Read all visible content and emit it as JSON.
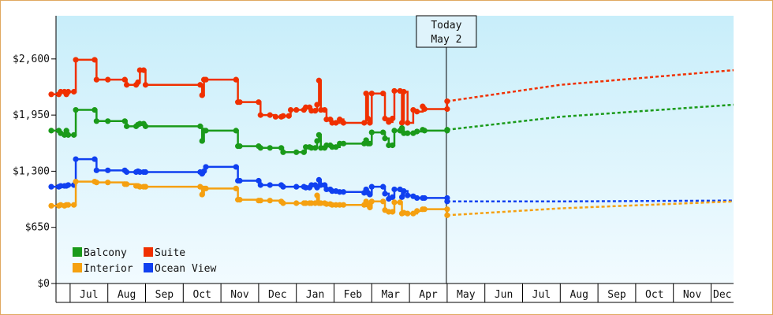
{
  "chart_data": {
    "type": "line",
    "title": "",
    "xlabel": "",
    "ylabel": "",
    "ylim": [
      0,
      3100
    ],
    "y_ticks": [
      "$0",
      "$650",
      "$1,300",
      "$1,950",
      "$2,600"
    ],
    "x_ticks": [
      "Jul",
      "Aug",
      "Sep",
      "Oct",
      "Nov",
      "Dec",
      "Jan",
      "Feb",
      "Mar",
      "Apr",
      "May",
      "Jun",
      "Jul",
      "Aug",
      "Sep",
      "Oct",
      "Nov",
      "Dec"
    ],
    "today": {
      "line1": "Today",
      "line2": "May 2",
      "x": 10.0
    },
    "legend_position": "bottom-left",
    "background": {
      "top": "#c8eefa",
      "bottom": "#f2fbff"
    },
    "series": [
      {
        "name": "Suite",
        "color": "#f03000",
        "points": [
          [
            -0.5,
            2190
          ],
          [
            -0.3,
            2190
          ],
          [
            -0.25,
            2220
          ],
          [
            -0.15,
            2220
          ],
          [
            -0.1,
            2190
          ],
          [
            -0.05,
            2220
          ],
          [
            0.1,
            2220
          ],
          [
            0.15,
            2590
          ],
          [
            0.65,
            2590
          ],
          [
            0.7,
            2360
          ],
          [
            1.0,
            2360
          ],
          [
            1.45,
            2360
          ],
          [
            1.5,
            2300
          ],
          [
            1.75,
            2300
          ],
          [
            1.8,
            2330
          ],
          [
            1.85,
            2470
          ],
          [
            1.95,
            2470
          ],
          [
            2.0,
            2300
          ],
          [
            3.45,
            2300
          ],
          [
            3.5,
            2180
          ],
          [
            3.55,
            2360
          ],
          [
            3.6,
            2360
          ],
          [
            4.4,
            2360
          ],
          [
            4.45,
            2100
          ],
          [
            4.5,
            2100
          ],
          [
            5.0,
            2100
          ],
          [
            5.05,
            1950
          ],
          [
            5.3,
            1950
          ],
          [
            5.45,
            1930
          ],
          [
            5.6,
            1930
          ],
          [
            5.65,
            1940
          ],
          [
            5.8,
            1940
          ],
          [
            5.85,
            2010
          ],
          [
            6.0,
            2010
          ],
          [
            6.2,
            2010
          ],
          [
            6.25,
            2040
          ],
          [
            6.35,
            2040
          ],
          [
            6.4,
            2000
          ],
          [
            6.5,
            2000
          ],
          [
            6.55,
            2070
          ],
          [
            6.6,
            2350
          ],
          [
            6.65,
            2010
          ],
          [
            6.75,
            2010
          ],
          [
            6.8,
            1900
          ],
          [
            6.9,
            1900
          ],
          [
            6.95,
            1860
          ],
          [
            7.05,
            1860
          ],
          [
            7.15,
            1900
          ],
          [
            7.25,
            1860
          ],
          [
            7.8,
            1860
          ],
          [
            7.85,
            2200
          ],
          [
            7.9,
            1910
          ],
          [
            7.95,
            1860
          ],
          [
            8.0,
            2200
          ],
          [
            8.3,
            2200
          ],
          [
            8.35,
            1910
          ],
          [
            8.45,
            1870
          ],
          [
            8.55,
            1910
          ],
          [
            8.6,
            2230
          ],
          [
            8.75,
            2230
          ],
          [
            8.8,
            1860
          ],
          [
            8.85,
            2220
          ],
          [
            8.95,
            1860
          ],
          [
            9.1,
            2010
          ],
          [
            9.2,
            1990
          ],
          [
            9.35,
            2050
          ],
          [
            9.4,
            2020
          ],
          [
            10.0,
            2020
          ],
          [
            10.0,
            2110
          ]
        ],
        "forecast": [
          [
            10.0,
            2110
          ],
          [
            13.0,
            2300
          ],
          [
            18.0,
            2470
          ]
        ]
      },
      {
        "name": "Balcony",
        "color": "#1a9a1a",
        "points": [
          [
            -0.5,
            1770
          ],
          [
            -0.3,
            1770
          ],
          [
            -0.25,
            1740
          ],
          [
            -0.15,
            1720
          ],
          [
            -0.1,
            1770
          ],
          [
            -0.05,
            1720
          ],
          [
            0.1,
            1720
          ],
          [
            0.15,
            2010
          ],
          [
            0.65,
            2010
          ],
          [
            0.7,
            1880
          ],
          [
            1.0,
            1880
          ],
          [
            1.45,
            1880
          ],
          [
            1.5,
            1820
          ],
          [
            1.75,
            1820
          ],
          [
            1.8,
            1840
          ],
          [
            1.85,
            1850
          ],
          [
            1.95,
            1850
          ],
          [
            2.0,
            1820
          ],
          [
            3.45,
            1820
          ],
          [
            3.5,
            1650
          ],
          [
            3.55,
            1770
          ],
          [
            3.6,
            1770
          ],
          [
            4.4,
            1770
          ],
          [
            4.45,
            1590
          ],
          [
            4.5,
            1590
          ],
          [
            5.0,
            1590
          ],
          [
            5.05,
            1570
          ],
          [
            5.3,
            1570
          ],
          [
            5.6,
            1570
          ],
          [
            5.65,
            1520
          ],
          [
            6.0,
            1520
          ],
          [
            6.2,
            1520
          ],
          [
            6.25,
            1580
          ],
          [
            6.35,
            1580
          ],
          [
            6.4,
            1570
          ],
          [
            6.5,
            1570
          ],
          [
            6.55,
            1650
          ],
          [
            6.6,
            1720
          ],
          [
            6.65,
            1570
          ],
          [
            6.75,
            1570
          ],
          [
            6.8,
            1600
          ],
          [
            6.9,
            1600
          ],
          [
            6.95,
            1580
          ],
          [
            7.05,
            1580
          ],
          [
            7.15,
            1620
          ],
          [
            7.25,
            1620
          ],
          [
            7.8,
            1620
          ],
          [
            7.85,
            1660
          ],
          [
            7.9,
            1620
          ],
          [
            7.95,
            1620
          ],
          [
            8.0,
            1750
          ],
          [
            8.3,
            1750
          ],
          [
            8.35,
            1680
          ],
          [
            8.45,
            1600
          ],
          [
            8.55,
            1600
          ],
          [
            8.6,
            1770
          ],
          [
            8.75,
            1770
          ],
          [
            8.8,
            1800
          ],
          [
            8.85,
            1740
          ],
          [
            8.95,
            1740
          ],
          [
            9.1,
            1740
          ],
          [
            9.2,
            1760
          ],
          [
            9.35,
            1780
          ],
          [
            9.4,
            1770
          ],
          [
            10.0,
            1770
          ],
          [
            10.0,
            1780
          ]
        ],
        "forecast": [
          [
            10.0,
            1780
          ],
          [
            13.0,
            1930
          ],
          [
            18.0,
            2070
          ]
        ]
      },
      {
        "name": "Ocean View",
        "color": "#1040f0",
        "points": [
          [
            -0.5,
            1120
          ],
          [
            -0.3,
            1120
          ],
          [
            -0.25,
            1130
          ],
          [
            -0.15,
            1130
          ],
          [
            -0.1,
            1130
          ],
          [
            -0.05,
            1140
          ],
          [
            0.1,
            1140
          ],
          [
            0.15,
            1440
          ],
          [
            0.65,
            1440
          ],
          [
            0.7,
            1310
          ],
          [
            1.0,
            1310
          ],
          [
            1.45,
            1310
          ],
          [
            1.5,
            1290
          ],
          [
            1.75,
            1290
          ],
          [
            1.8,
            1300
          ],
          [
            1.85,
            1290
          ],
          [
            1.95,
            1290
          ],
          [
            2.0,
            1290
          ],
          [
            3.45,
            1290
          ],
          [
            3.5,
            1270
          ],
          [
            3.55,
            1300
          ],
          [
            3.6,
            1350
          ],
          [
            4.4,
            1350
          ],
          [
            4.45,
            1190
          ],
          [
            4.5,
            1190
          ],
          [
            5.0,
            1190
          ],
          [
            5.05,
            1140
          ],
          [
            5.3,
            1140
          ],
          [
            5.6,
            1140
          ],
          [
            5.65,
            1120
          ],
          [
            6.0,
            1120
          ],
          [
            6.2,
            1120
          ],
          [
            6.25,
            1110
          ],
          [
            6.35,
            1110
          ],
          [
            6.4,
            1140
          ],
          [
            6.5,
            1140
          ],
          [
            6.55,
            1110
          ],
          [
            6.6,
            1200
          ],
          [
            6.65,
            1140
          ],
          [
            6.75,
            1140
          ],
          [
            6.8,
            1090
          ],
          [
            6.9,
            1090
          ],
          [
            6.95,
            1070
          ],
          [
            7.05,
            1070
          ],
          [
            7.15,
            1060
          ],
          [
            7.25,
            1060
          ],
          [
            7.8,
            1050
          ],
          [
            7.85,
            1090
          ],
          [
            7.9,
            1050
          ],
          [
            7.95,
            1030
          ],
          [
            8.0,
            1120
          ],
          [
            8.3,
            1120
          ],
          [
            8.35,
            1040
          ],
          [
            8.45,
            980
          ],
          [
            8.55,
            1000
          ],
          [
            8.6,
            1090
          ],
          [
            8.75,
            1090
          ],
          [
            8.8,
            1000
          ],
          [
            8.85,
            1070
          ],
          [
            8.95,
            1020
          ],
          [
            9.1,
            1010
          ],
          [
            9.2,
            990
          ],
          [
            9.35,
            990
          ],
          [
            9.4,
            990
          ],
          [
            10.0,
            990
          ],
          [
            10.0,
            950
          ]
        ],
        "forecast": [
          [
            10.0,
            950
          ],
          [
            13.0,
            950
          ],
          [
            18.0,
            960
          ]
        ]
      },
      {
        "name": "Interior",
        "color": "#f5a010",
        "points": [
          [
            -0.5,
            900
          ],
          [
            -0.3,
            900
          ],
          [
            -0.25,
            910
          ],
          [
            -0.15,
            900
          ],
          [
            -0.1,
            910
          ],
          [
            -0.05,
            910
          ],
          [
            0.1,
            910
          ],
          [
            0.15,
            1180
          ],
          [
            0.65,
            1180
          ],
          [
            0.7,
            1170
          ],
          [
            1.0,
            1170
          ],
          [
            1.45,
            1150
          ],
          [
            1.5,
            1150
          ],
          [
            1.75,
            1130
          ],
          [
            1.8,
            1130
          ],
          [
            1.85,
            1120
          ],
          [
            1.95,
            1120
          ],
          [
            2.0,
            1120
          ],
          [
            3.45,
            1120
          ],
          [
            3.5,
            1030
          ],
          [
            3.55,
            1100
          ],
          [
            3.6,
            1100
          ],
          [
            4.4,
            1100
          ],
          [
            4.45,
            970
          ],
          [
            4.5,
            970
          ],
          [
            5.0,
            960
          ],
          [
            5.05,
            960
          ],
          [
            5.3,
            960
          ],
          [
            5.6,
            950
          ],
          [
            5.65,
            930
          ],
          [
            6.0,
            930
          ],
          [
            6.2,
            930
          ],
          [
            6.25,
            930
          ],
          [
            6.35,
            930
          ],
          [
            6.4,
            930
          ],
          [
            6.5,
            930
          ],
          [
            6.55,
            1020
          ],
          [
            6.6,
            930
          ],
          [
            6.65,
            930
          ],
          [
            6.75,
            930
          ],
          [
            6.8,
            920
          ],
          [
            6.9,
            920
          ],
          [
            6.95,
            910
          ],
          [
            7.05,
            910
          ],
          [
            7.15,
            910
          ],
          [
            7.25,
            910
          ],
          [
            7.8,
            910
          ],
          [
            7.85,
            950
          ],
          [
            7.9,
            910
          ],
          [
            7.95,
            880
          ],
          [
            8.0,
            950
          ],
          [
            8.3,
            950
          ],
          [
            8.35,
            850
          ],
          [
            8.45,
            830
          ],
          [
            8.55,
            830
          ],
          [
            8.6,
            940
          ],
          [
            8.75,
            940
          ],
          [
            8.8,
            810
          ],
          [
            8.85,
            820
          ],
          [
            8.95,
            810
          ],
          [
            9.1,
            810
          ],
          [
            9.2,
            840
          ],
          [
            9.35,
            860
          ],
          [
            9.4,
            860
          ],
          [
            10.0,
            860
          ],
          [
            10.0,
            790
          ]
        ],
        "forecast": [
          [
            10.0,
            790
          ],
          [
            13.0,
            870
          ],
          [
            18.0,
            950
          ]
        ]
      }
    ],
    "legend": [
      {
        "label": "Balcony",
        "color": "#1a9a1a"
      },
      {
        "label": "Suite",
        "color": "#f03000"
      },
      {
        "label": "Interior",
        "color": "#f5a010"
      },
      {
        "label": "Ocean View",
        "color": "#1040f0"
      }
    ]
  }
}
